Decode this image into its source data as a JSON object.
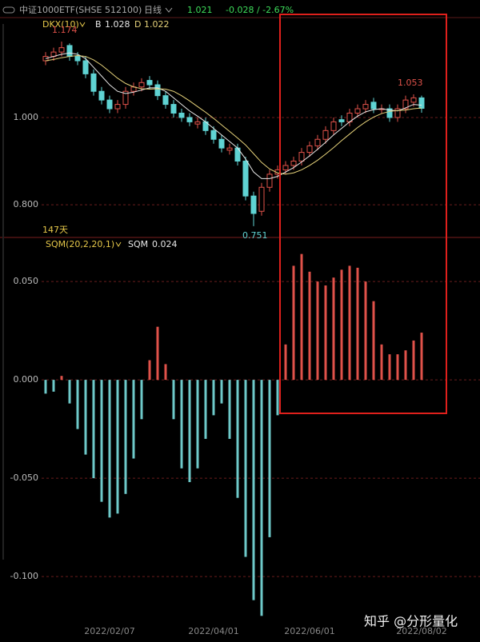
{
  "header": {
    "name": "中证1000ETF(SHSE 512100)",
    "period": "日线",
    "change": "-0.028 / -2.67%"
  },
  "annotation": "147天",
  "watermark": "知乎 @分形量化",
  "chart_data": [
    {
      "type": "candlestick",
      "indicator": "DKX(10)",
      "up_color": "#e0524a",
      "down_color": "#5fd3d3",
      "open": [
        1.13,
        1.14,
        1.15,
        1.165,
        1.14,
        1.13,
        1.1,
        1.06,
        1.04,
        1.02,
        1.03,
        1.06,
        1.07,
        1.085,
        1.075,
        1.05,
        1.03,
        1.01,
        1.0,
        0.985,
        0.99,
        0.97,
        0.95,
        0.925,
        0.93,
        0.9,
        0.82,
        0.785,
        0.84,
        0.87,
        0.88,
        0.89,
        0.9,
        0.92,
        0.935,
        0.95,
        0.97,
        0.995,
        0.99,
        1.01,
        1.02,
        1.035,
        1.02,
        1.02,
        1.0,
        1.02,
        1.035,
        1.045
      ],
      "high": [
        1.15,
        1.16,
        1.174,
        1.17,
        1.15,
        1.14,
        1.11,
        1.07,
        1.05,
        1.04,
        1.07,
        1.08,
        1.09,
        1.095,
        1.085,
        1.06,
        1.04,
        1.02,
        1.01,
        1.0,
        1.0,
        0.98,
        0.96,
        0.94,
        0.94,
        0.91,
        0.83,
        0.85,
        0.88,
        0.89,
        0.9,
        0.91,
        0.93,
        0.945,
        0.96,
        0.98,
        1.0,
        1.005,
        1.02,
        1.03,
        1.04,
        1.045,
        1.03,
        1.03,
        1.03,
        1.05,
        1.053,
        1.05
      ],
      "low": [
        1.12,
        1.13,
        1.14,
        1.13,
        1.12,
        1.09,
        1.05,
        1.03,
        1.01,
        1.01,
        1.02,
        1.05,
        1.06,
        1.065,
        1.04,
        1.02,
        1.0,
        0.99,
        0.98,
        0.975,
        0.96,
        0.94,
        0.92,
        0.915,
        0.89,
        0.81,
        0.751,
        0.775,
        0.83,
        0.86,
        0.87,
        0.88,
        0.89,
        0.91,
        0.925,
        0.94,
        0.96,
        0.98,
        0.98,
        1.0,
        1.01,
        1.01,
        1.01,
        0.99,
        0.99,
        1.01,
        1.025,
        1.011
      ],
      "close": [
        1.14,
        1.15,
        1.16,
        1.14,
        1.13,
        1.1,
        1.06,
        1.04,
        1.02,
        1.03,
        1.06,
        1.07,
        1.08,
        1.075,
        1.05,
        1.03,
        1.01,
        1.0,
        0.99,
        0.99,
        0.97,
        0.95,
        0.93,
        0.93,
        0.9,
        0.82,
        0.78,
        0.84,
        0.87,
        0.88,
        0.89,
        0.9,
        0.92,
        0.935,
        0.95,
        0.97,
        0.99,
        0.99,
        1.01,
        1.02,
        1.03,
        1.02,
        1.02,
        1.0,
        1.02,
        1.04,
        1.045,
        1.021
      ],
      "series": [
        {
          "name": "B",
          "color": "#e8e8e8",
          "values": [
            1.135,
            1.14,
            1.145,
            1.148,
            1.145,
            1.135,
            1.115,
            1.095,
            1.075,
            1.06,
            1.055,
            1.058,
            1.063,
            1.068,
            1.068,
            1.06,
            1.045,
            1.03,
            1.015,
            1.003,
            0.99,
            0.975,
            0.96,
            0.945,
            0.93,
            0.905,
            0.875,
            0.86,
            0.86,
            0.865,
            0.875,
            0.885,
            0.898,
            0.912,
            0.927,
            0.943,
            0.96,
            0.975,
            0.99,
            1.003,
            1.013,
            1.018,
            1.02,
            1.017,
            1.015,
            1.022,
            1.03,
            1.028
          ]
        },
        {
          "name": "D",
          "color": "#e6d27a",
          "values": [
            1.13,
            1.133,
            1.137,
            1.14,
            1.142,
            1.14,
            1.132,
            1.12,
            1.105,
            1.09,
            1.078,
            1.07,
            1.066,
            1.065,
            1.066,
            1.065,
            1.06,
            1.05,
            1.038,
            1.025,
            1.012,
            0.998,
            0.983,
            0.968,
            0.953,
            0.937,
            0.917,
            0.897,
            0.882,
            0.873,
            0.87,
            0.873,
            0.88,
            0.89,
            0.902,
            0.916,
            0.931,
            0.947,
            0.962,
            0.977,
            0.99,
            1.001,
            1.009,
            1.014,
            1.016,
            1.017,
            1.02,
            1.022
          ]
        }
      ],
      "ylim": [
        0.725,
        1.229
      ],
      "yticks": [
        {
          "value": 0.8,
          "label": "0.800"
        },
        {
          "value": 1,
          "label": "1.000"
        }
      ],
      "grid": true
    },
    {
      "type": "bar",
      "indicator": "SQM(20,2,20,1)",
      "categories": [
        null,
        null,
        null,
        null,
        null,
        null,
        null,
        null,
        "2022/02/07",
        null,
        null,
        null,
        null,
        null,
        null,
        null,
        null,
        null,
        null,
        null,
        null,
        "2022/04/01",
        null,
        null,
        null,
        null,
        null,
        null,
        null,
        null,
        null,
        null,
        null,
        "2022/06/01",
        null,
        null,
        null,
        null,
        null,
        null,
        null,
        null,
        null,
        null,
        null,
        null,
        null,
        "2022/08/02"
      ],
      "series": [
        {
          "name": "SQM",
          "pos_color": "#e0524a",
          "neg_color": "#6ec9c9",
          "values": [
            -0.007,
            -0.006,
            0.002,
            -0.012,
            -0.025,
            -0.038,
            -0.05,
            -0.062,
            -0.07,
            -0.068,
            -0.058,
            -0.04,
            -0.02,
            0.01,
            0.027,
            0.008,
            -0.02,
            -0.045,
            -0.052,
            -0.045,
            -0.03,
            -0.018,
            -0.012,
            -0.03,
            -0.06,
            -0.09,
            -0.112,
            -0.12,
            -0.08,
            -0.018,
            0.018,
            0.058,
            0.064,
            0.055,
            0.05,
            0.048,
            0.052,
            0.056,
            0.058,
            0.057,
            0.05,
            0.04,
            0.018,
            0.013,
            0.013,
            0.015,
            0.02,
            0.024
          ]
        }
      ],
      "ylim": [
        -0.128,
        0.072
      ],
      "yticks": [
        {
          "value": -0.1,
          "label": "-0.100"
        },
        {
          "value": -0.05,
          "label": "-0.050"
        },
        {
          "value": 0,
          "label": "0.000"
        },
        {
          "value": 0.05,
          "label": "0.050"
        }
      ],
      "grid": true
    }
  ]
}
